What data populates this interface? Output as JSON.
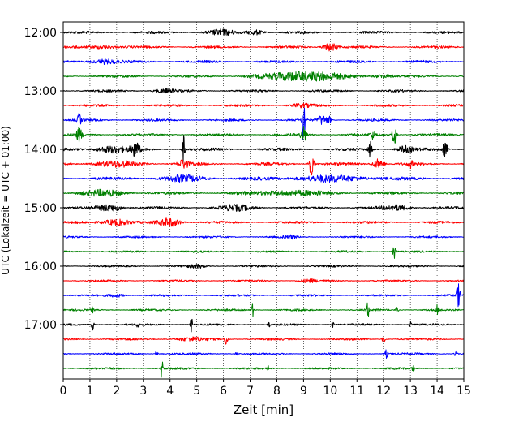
{
  "chart_data": {
    "type": "line",
    "title": "",
    "xlabel": "Zeit  [min]",
    "ylabel": "UTC (Lokalzeit = UTC + 01:00)",
    "xlim": [
      0,
      15
    ],
    "x_ticks": [
      0,
      1,
      2,
      3,
      4,
      5,
      6,
      7,
      8,
      9,
      10,
      11,
      12,
      13,
      14,
      15
    ],
    "y_tick_labels": [
      "12:00",
      "13:00",
      "14:00",
      "15:00",
      "16:00",
      "17:00"
    ],
    "grid": "vertical dotted at every minute",
    "trace_interval_minutes": 15,
    "colors": [
      "#000000",
      "#ff0000",
      "#0000ff",
      "#008000"
    ],
    "traces": [
      {
        "time": "12:00",
        "color": "#000000",
        "noise": 1.6,
        "events": [
          {
            "x": 5.9,
            "amp": 3,
            "w": 0.5
          },
          {
            "x": 7.2,
            "amp": 3,
            "w": 0.3
          }
        ]
      },
      {
        "time": "12:15",
        "color": "#ff0000",
        "noise": 1.6,
        "events": [
          {
            "x": 10.0,
            "amp": 5,
            "w": 0.25
          },
          {
            "x": 1.5,
            "amp": 2,
            "w": 0.5
          }
        ]
      },
      {
        "time": "12:30",
        "color": "#0000ff",
        "noise": 1.6,
        "events": [
          {
            "x": 1.5,
            "amp": 3,
            "w": 0.5
          }
        ]
      },
      {
        "time": "12:45",
        "color": "#008000",
        "noise": 1.5,
        "events": [
          {
            "x": 9.0,
            "amp": 6,
            "w": 1.4
          },
          {
            "x": 12.0,
            "amp": 2,
            "w": 0.4
          }
        ]
      },
      {
        "time": "13:00",
        "color": "#000000",
        "noise": 1.5,
        "events": [
          {
            "x": 3.8,
            "amp": 2,
            "w": 0.4
          }
        ]
      },
      {
        "time": "13:15",
        "color": "#ff0000",
        "noise": 1.5,
        "events": [
          {
            "x": 8.9,
            "amp": 2,
            "w": 0.4
          }
        ]
      },
      {
        "time": "13:30",
        "color": "#0000ff",
        "noise": 1.5,
        "events": [
          {
            "x": 9.0,
            "amp": 36,
            "w": 0.05
          },
          {
            "x": 0.6,
            "amp": 9,
            "w": 0.06
          },
          {
            "x": 9.7,
            "amp": 6,
            "w": 0.15
          },
          {
            "x": 9.95,
            "amp": 5,
            "w": 0.08
          }
        ]
      },
      {
        "time": "13:45",
        "color": "#008000",
        "noise": 1.6,
        "events": [
          {
            "x": 0.6,
            "amp": 9,
            "w": 0.1
          },
          {
            "x": 9.0,
            "amp": 10,
            "w": 0.1
          },
          {
            "x": 12.4,
            "amp": 14,
            "w": 0.08
          },
          {
            "x": 11.6,
            "amp": 5,
            "w": 0.1
          }
        ]
      },
      {
        "time": "14:00",
        "color": "#000000",
        "noise": 1.8,
        "events": [
          {
            "x": 4.5,
            "amp": 18,
            "w": 0.05
          },
          {
            "x": 2.7,
            "amp": 9,
            "w": 0.15
          },
          {
            "x": 1.8,
            "amp": 4,
            "w": 0.6
          },
          {
            "x": 11.5,
            "amp": 13,
            "w": 0.06
          },
          {
            "x": 14.3,
            "amp": 11,
            "w": 0.08
          },
          {
            "x": 12.8,
            "amp": 4,
            "w": 0.3
          }
        ]
      },
      {
        "time": "14:15",
        "color": "#ff0000",
        "noise": 1.8,
        "events": [
          {
            "x": 9.3,
            "amp": 14,
            "w": 0.1
          },
          {
            "x": 4.5,
            "amp": 5,
            "w": 0.2
          },
          {
            "x": 11.8,
            "amp": 6,
            "w": 0.2
          },
          {
            "x": 2.0,
            "amp": 3,
            "w": 0.8
          },
          {
            "x": 13.0,
            "amp": 4,
            "w": 0.1
          }
        ]
      },
      {
        "time": "14:30",
        "color": "#0000ff",
        "noise": 2.0,
        "events": [
          {
            "x": 4.5,
            "amp": 3,
            "w": 0.8
          },
          {
            "x": 10.0,
            "amp": 3,
            "w": 1.5
          }
        ]
      },
      {
        "time": "14:45",
        "color": "#008000",
        "noise": 1.9,
        "events": [
          {
            "x": 1.5,
            "amp": 3,
            "w": 0.8
          },
          {
            "x": 8.5,
            "amp": 3,
            "w": 1.2
          }
        ]
      },
      {
        "time": "15:00",
        "color": "#000000",
        "noise": 1.6,
        "events": [
          {
            "x": 1.8,
            "amp": 4,
            "w": 0.5
          },
          {
            "x": 6.5,
            "amp": 3,
            "w": 0.6
          },
          {
            "x": 12.5,
            "amp": 3,
            "w": 0.5
          }
        ]
      },
      {
        "time": "15:15",
        "color": "#ff0000",
        "noise": 1.6,
        "events": [
          {
            "x": 2.0,
            "amp": 4,
            "w": 0.5
          },
          {
            "x": 4.0,
            "amp": 5,
            "w": 0.4
          }
        ]
      },
      {
        "time": "15:30",
        "color": "#0000ff",
        "noise": 1.3,
        "events": [
          {
            "x": 8.5,
            "amp": 2,
            "w": 0.2
          }
        ]
      },
      {
        "time": "15:45",
        "color": "#008000",
        "noise": 1.3,
        "events": [
          {
            "x": 12.4,
            "amp": 8,
            "w": 0.06
          }
        ]
      },
      {
        "time": "16:00",
        "color": "#000000",
        "noise": 1.2,
        "events": [
          {
            "x": 5.0,
            "amp": 2,
            "w": 0.3
          }
        ]
      },
      {
        "time": "16:15",
        "color": "#ff0000",
        "noise": 1.2,
        "events": [
          {
            "x": 9.2,
            "amp": 2,
            "w": 0.3
          }
        ]
      },
      {
        "time": "16:30",
        "color": "#0000ff",
        "noise": 1.3,
        "events": [
          {
            "x": 14.8,
            "amp": 20,
            "w": 0.05
          },
          {
            "x": 2.0,
            "amp": 2,
            "w": 0.3
          }
        ]
      },
      {
        "time": "16:45",
        "color": "#008000",
        "noise": 1.3,
        "events": [
          {
            "x": 7.1,
            "amp": 8,
            "w": 0.05
          },
          {
            "x": 11.4,
            "amp": 14,
            "w": 0.04
          },
          {
            "x": 14.0,
            "amp": 6,
            "w": 0.05
          },
          {
            "x": 1.1,
            "amp": 3,
            "w": 0.05
          },
          {
            "x": 12.5,
            "amp": 3,
            "w": 0.05
          }
        ]
      },
      {
        "time": "17:00",
        "color": "#000000",
        "noise": 1.3,
        "events": [
          {
            "x": 4.8,
            "amp": 10,
            "w": 0.04
          },
          {
            "x": 1.1,
            "amp": 9,
            "w": 0.04
          },
          {
            "x": 2.8,
            "amp": 5,
            "w": 0.04
          },
          {
            "x": 10.1,
            "amp": 5,
            "w": 0.04
          },
          {
            "x": 7.7,
            "amp": 4,
            "w": 0.04
          },
          {
            "x": 13.0,
            "amp": 3,
            "w": 0.04
          }
        ]
      },
      {
        "time": "17:15",
        "color": "#ff0000",
        "noise": 1.3,
        "events": [
          {
            "x": 6.1,
            "amp": 9,
            "w": 0.05
          },
          {
            "x": 12.0,
            "amp": 6,
            "w": 0.05
          },
          {
            "x": 4.8,
            "amp": 2,
            "w": 0.6
          }
        ]
      },
      {
        "time": "17:30",
        "color": "#0000ff",
        "noise": 1.3,
        "events": [
          {
            "x": 12.1,
            "amp": 5,
            "w": 0.05
          },
          {
            "x": 14.7,
            "amp": 5,
            "w": 0.05
          },
          {
            "x": 3.5,
            "amp": 4,
            "w": 0.05
          },
          {
            "x": 6.5,
            "amp": 3,
            "w": 0.05
          }
        ]
      },
      {
        "time": "17:45",
        "color": "#008000",
        "noise": 1.3,
        "events": [
          {
            "x": 3.7,
            "amp": 16,
            "w": 0.04
          },
          {
            "x": 7.7,
            "amp": 5,
            "w": 0.04
          },
          {
            "x": 13.1,
            "amp": 4,
            "w": 0.05
          }
        ]
      }
    ]
  }
}
